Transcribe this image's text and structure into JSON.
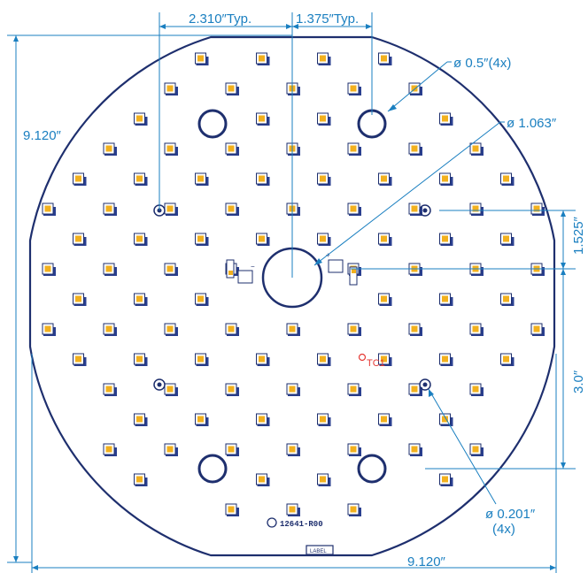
{
  "colors": {
    "dimension": "#1a7fc0",
    "board_outline": "#1e2f6e",
    "led_body": "#ffffff",
    "led_pad": "#2a3f8f",
    "led_lens": "#f2b01e",
    "testpoint": "#e53935"
  },
  "dimensions": {
    "pitch_x": "2.310″Typ.",
    "pitch_y": "1.375″Typ.",
    "board_height": "9.120″",
    "board_width": "9.120″",
    "hole_large": "ø 0.5″(4x)",
    "center_hole": "ø 1.063″",
    "row_spacing": "1.525″",
    "hole_spacing": "3.0″",
    "mount_hole": "ø 0.201″",
    "mount_hole_qty": "(4x)"
  },
  "board": {
    "testpoint_label": "TC1",
    "part_number": "12641-R00",
    "label_box": "LABEL",
    "polarity_plus": "+",
    "polarity_minus": "−"
  }
}
